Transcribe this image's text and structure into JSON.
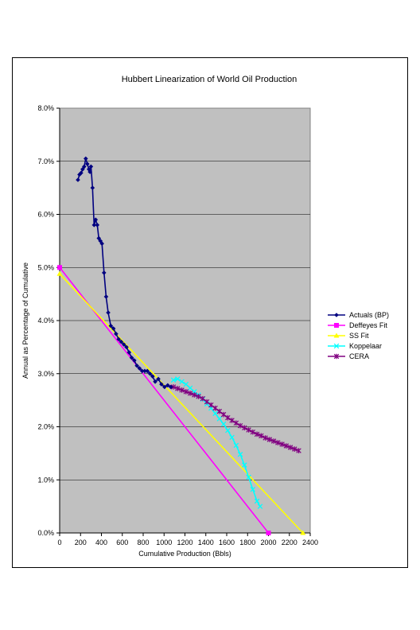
{
  "chart_data": {
    "type": "line",
    "title": "Hubbert Linearization of World Oil Production",
    "xlabel": "Cumulative Production (Bbls)",
    "ylabel": "Annual as Percentage of Cumulative",
    "xlim": [
      0,
      2400
    ],
    "ylim": [
      0,
      8
    ],
    "x_ticks": [
      0,
      200,
      400,
      600,
      800,
      1000,
      1200,
      1400,
      1600,
      1800,
      2000,
      2200,
      2400
    ],
    "y_ticks": [
      "0.0%",
      "1.0%",
      "2.0%",
      "3.0%",
      "4.0%",
      "5.0%",
      "6.0%",
      "7.0%",
      "8.0%"
    ],
    "grid": "horizontal",
    "plot_background": "#c0c0c0",
    "legend_position": "right",
    "series": [
      {
        "name": "Actuals (BP)",
        "color": "#000080",
        "marker": "diamond",
        "points": [
          [
            175,
            6.65
          ],
          [
            190,
            6.75
          ],
          [
            205,
            6.78
          ],
          [
            220,
            6.85
          ],
          [
            235,
            6.9
          ],
          [
            250,
            7.05
          ],
          [
            265,
            6.95
          ],
          [
            280,
            6.85
          ],
          [
            290,
            6.8
          ],
          [
            300,
            6.9
          ],
          [
            315,
            6.5
          ],
          [
            330,
            5.8
          ],
          [
            345,
            5.9
          ],
          [
            360,
            5.8
          ],
          [
            375,
            5.55
          ],
          [
            390,
            5.5
          ],
          [
            405,
            5.45
          ],
          [
            425,
            4.9
          ],
          [
            445,
            4.45
          ],
          [
            465,
            4.15
          ],
          [
            490,
            3.9
          ],
          [
            515,
            3.85
          ],
          [
            540,
            3.75
          ],
          [
            565,
            3.65
          ],
          [
            590,
            3.6
          ],
          [
            615,
            3.55
          ],
          [
            640,
            3.5
          ],
          [
            665,
            3.4
          ],
          [
            690,
            3.3
          ],
          [
            715,
            3.25
          ],
          [
            740,
            3.15
          ],
          [
            765,
            3.1
          ],
          [
            790,
            3.05
          ],
          [
            815,
            3.05
          ],
          [
            840,
            3.05
          ],
          [
            865,
            3.0
          ],
          [
            890,
            2.95
          ],
          [
            915,
            2.85
          ],
          [
            945,
            2.9
          ],
          [
            975,
            2.8
          ],
          [
            1005,
            2.75
          ],
          [
            1035,
            2.78
          ],
          [
            1065,
            2.75
          ]
        ]
      },
      {
        "name": "Deffeyes Fit",
        "color": "#ff00ff",
        "marker": "square",
        "points": [
          [
            0,
            5.0
          ],
          [
            2000,
            0.0
          ]
        ]
      },
      {
        "name": "SS Fit",
        "color": "#ffff00",
        "marker": "triangle",
        "points": [
          [
            0,
            4.88
          ],
          [
            2330,
            0.0
          ]
        ]
      },
      {
        "name": "Koppelaar",
        "color": "#00ffff",
        "marker": "x",
        "points": [
          [
            1090,
            2.88
          ],
          [
            1130,
            2.9
          ],
          [
            1170,
            2.85
          ],
          [
            1210,
            2.8
          ],
          [
            1250,
            2.73
          ],
          [
            1290,
            2.66
          ],
          [
            1330,
            2.6
          ],
          [
            1370,
            2.52
          ],
          [
            1410,
            2.43
          ],
          [
            1450,
            2.35
          ],
          [
            1490,
            2.25
          ],
          [
            1530,
            2.15
          ],
          [
            1570,
            2.05
          ],
          [
            1610,
            1.93
          ],
          [
            1650,
            1.8
          ],
          [
            1690,
            1.65
          ],
          [
            1730,
            1.48
          ],
          [
            1770,
            1.28
          ],
          [
            1810,
            1.05
          ],
          [
            1850,
            0.82
          ],
          [
            1890,
            0.6
          ],
          [
            1920,
            0.5
          ]
        ]
      },
      {
        "name": "CERA",
        "color": "#800080",
        "marker": "star",
        "points": [
          [
            1090,
            2.75
          ],
          [
            1130,
            2.72
          ],
          [
            1170,
            2.69
          ],
          [
            1210,
            2.66
          ],
          [
            1250,
            2.63
          ],
          [
            1290,
            2.6
          ],
          [
            1330,
            2.57
          ],
          [
            1370,
            2.53
          ],
          [
            1410,
            2.47
          ],
          [
            1450,
            2.41
          ],
          [
            1490,
            2.35
          ],
          [
            1530,
            2.29
          ],
          [
            1570,
            2.23
          ],
          [
            1610,
            2.17
          ],
          [
            1650,
            2.12
          ],
          [
            1690,
            2.07
          ],
          [
            1730,
            2.02
          ],
          [
            1770,
            1.98
          ],
          [
            1810,
            1.94
          ],
          [
            1850,
            1.9
          ],
          [
            1890,
            1.86
          ],
          [
            1930,
            1.83
          ],
          [
            1970,
            1.79
          ],
          [
            2010,
            1.76
          ],
          [
            2050,
            1.73
          ],
          [
            2090,
            1.7
          ],
          [
            2130,
            1.67
          ],
          [
            2170,
            1.64
          ],
          [
            2210,
            1.61
          ],
          [
            2250,
            1.58
          ],
          [
            2290,
            1.55
          ]
        ]
      }
    ]
  }
}
